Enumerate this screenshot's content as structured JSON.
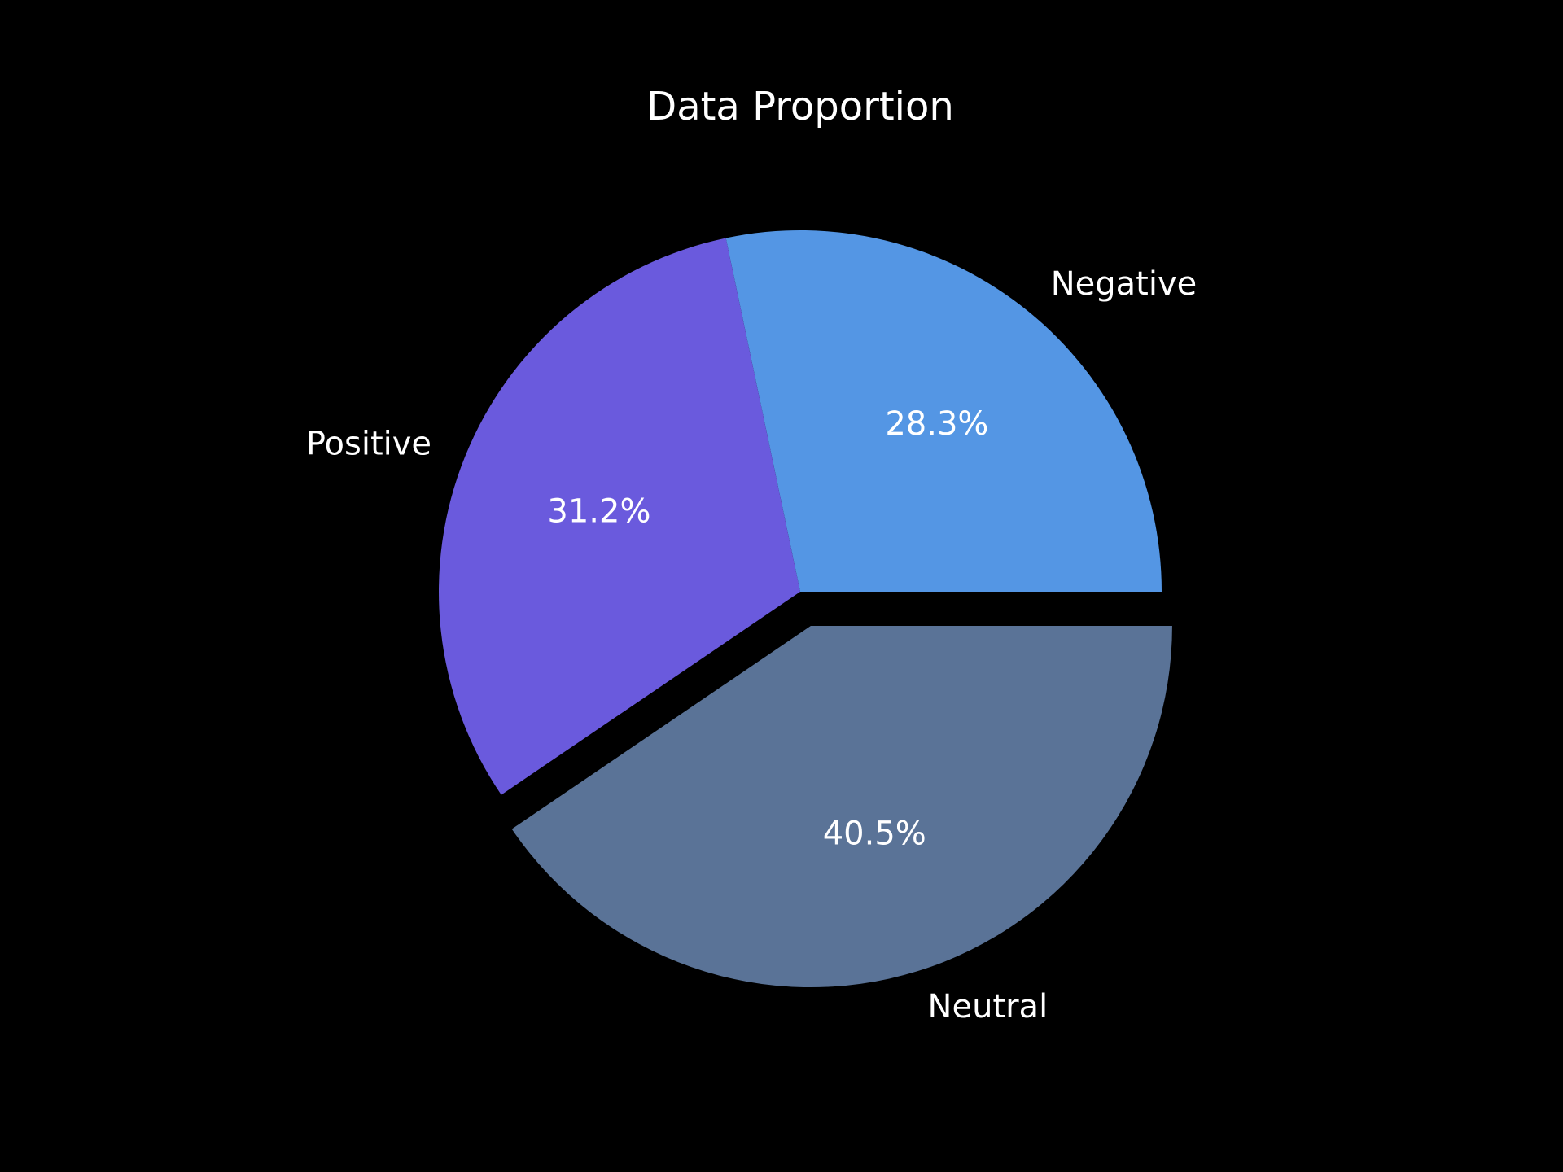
{
  "chart_data": {
    "type": "pie",
    "title": "Data Proportion",
    "slices": [
      {
        "label": "Negative",
        "value": 28.3,
        "pct_label": "28.3%",
        "color": "#5496e4",
        "exploded": false
      },
      {
        "label": "Positive",
        "value": 31.2,
        "pct_label": "31.2%",
        "color": "#6a5add",
        "exploded": false
      },
      {
        "label": "Neutral",
        "value": 40.5,
        "pct_label": "40.5%",
        "color": "#5a7397",
        "exploded": true
      }
    ],
    "start_angle_deg": 0,
    "direction": "counterclockwise",
    "legend": "none"
  }
}
